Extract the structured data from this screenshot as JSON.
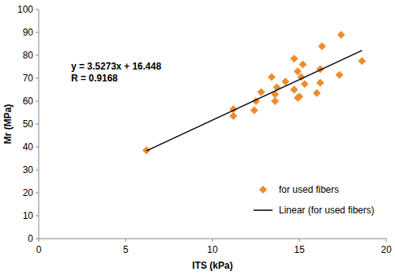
{
  "chart_data": {
    "type": "scatter",
    "x_label": "ITS (kPa)",
    "y_label": "Mr (MPa)",
    "annotations": [
      "y = 3.5273x + 16.448",
      "R = 0.9168"
    ],
    "xlim": [
      0,
      20
    ],
    "xticks": [
      0,
      5,
      10,
      15,
      20
    ],
    "ylim": [
      0,
      100
    ],
    "yticks": [
      0,
      10,
      20,
      30,
      40,
      50,
      60,
      70,
      80,
      90,
      100
    ],
    "grid": false,
    "legend": "lower-right",
    "series": [
      {
        "name": "for used fibers",
        "type": "scatter",
        "marker": "diamond",
        "color": "#ed8b2f",
        "x": [
          6.2,
          11.2,
          11.2,
          12.4,
          12.5,
          12.8,
          13.4,
          13.6,
          13.6,
          13.7,
          14.2,
          14.7,
          14.7,
          14.9,
          15.0,
          14.9,
          15.1,
          15.2,
          15.3,
          16.0,
          16.2,
          16.2,
          16.3,
          17.3,
          17.4,
          18.6
        ],
        "values": [
          38.5,
          56.5,
          53.5,
          56,
          60,
          64,
          70.5,
          60,
          63,
          66,
          68.5,
          78.5,
          65,
          73,
          62,
          61.5,
          70.5,
          76,
          67.5,
          63.5,
          74,
          68,
          84,
          71.5,
          89,
          77.5
        ]
      },
      {
        "name": "Linear (for used fibers)",
        "type": "line",
        "line_style": "solid",
        "color": "#000000",
        "x": [
          6.2,
          18.6
        ],
        "values": [
          38.3,
          82.1
        ]
      }
    ]
  }
}
